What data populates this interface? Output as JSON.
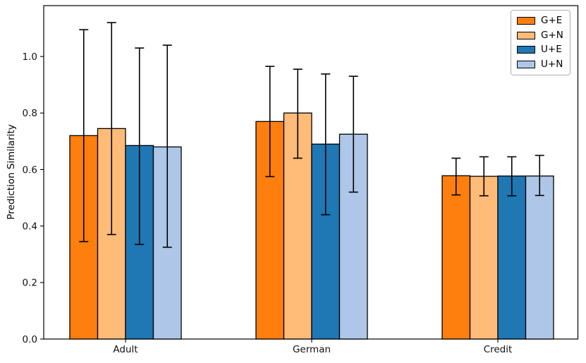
{
  "chart_data": {
    "type": "bar",
    "title": "",
    "xlabel": "",
    "ylabel": "Prediction Similarity",
    "categories": [
      "Adult",
      "German",
      "Credit"
    ],
    "series": [
      {
        "name": "G+E",
        "color": "#ff7f0e",
        "values": [
          0.72,
          0.77,
          0.578
        ],
        "err_lo": [
          0.345,
          0.575,
          0.51
        ],
        "err_hi": [
          1.095,
          0.965,
          0.64
        ]
      },
      {
        "name": "G+N",
        "color": "#ffbb78",
        "values": [
          0.745,
          0.8,
          0.576
        ],
        "err_lo": [
          0.37,
          0.64,
          0.507
        ],
        "err_hi": [
          1.12,
          0.955,
          0.645
        ]
      },
      {
        "name": "U+E",
        "color": "#1f77b4",
        "values": [
          0.685,
          0.69,
          0.577
        ],
        "err_lo": [
          0.335,
          0.44,
          0.507
        ],
        "err_hi": [
          1.03,
          0.938,
          0.645
        ]
      },
      {
        "name": "U+N",
        "color": "#aec7e8",
        "values": [
          0.68,
          0.725,
          0.577
        ],
        "err_lo": [
          0.325,
          0.52,
          0.508
        ],
        "err_hi": [
          1.04,
          0.93,
          0.65
        ]
      }
    ],
    "yticks": [
      {
        "value": 0.0,
        "label": "0.0"
      },
      {
        "value": 0.2,
        "label": "0.2"
      },
      {
        "value": 0.4,
        "label": "0.4"
      },
      {
        "value": 0.6,
        "label": "0.6"
      },
      {
        "value": 0.8,
        "label": "0.8"
      },
      {
        "value": 1.0,
        "label": "1.0"
      }
    ],
    "ylim": [
      0,
      1.18
    ],
    "grid": false,
    "legend": {
      "position": "upper-right",
      "entries": [
        "G+E",
        "G+N",
        "U+E",
        "U+N"
      ]
    },
    "colors": {
      "axis": "#000000",
      "error_bar": "#000000",
      "bar_edge": "#000000",
      "background": "#ffffff",
      "legend_border": "#b0b0b0"
    }
  }
}
